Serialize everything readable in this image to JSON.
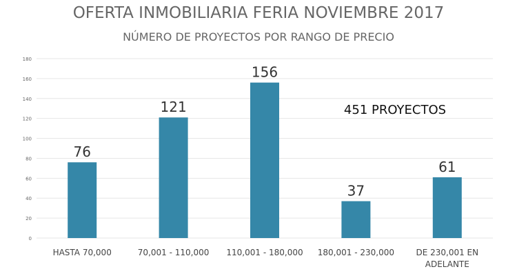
{
  "chart_data": {
    "type": "bar",
    "title": "OFERTA INMOBILIARIA FERIA NOVIEMBRE 2017",
    "subtitle": "NÚMERO DE PROYECTOS POR RANGO DE PRECIO",
    "annotation": "451 PROYECTOS",
    "categories": [
      [
        "HASTA 70,000"
      ],
      [
        "70,001 - 110,000"
      ],
      [
        "110,001 - 180,000"
      ],
      [
        "180,001 - 230,000"
      ],
      [
        "DE 230,001 EN",
        "ADELANTE"
      ]
    ],
    "values": [
      76,
      121,
      156,
      37,
      61
    ],
    "ylim": [
      0,
      180
    ],
    "yticks": [
      0,
      20,
      40,
      60,
      80,
      100,
      120,
      140,
      160,
      180
    ],
    "grid": true,
    "bar_color": "#3587a8",
    "xlabel": "",
    "ylabel": ""
  }
}
